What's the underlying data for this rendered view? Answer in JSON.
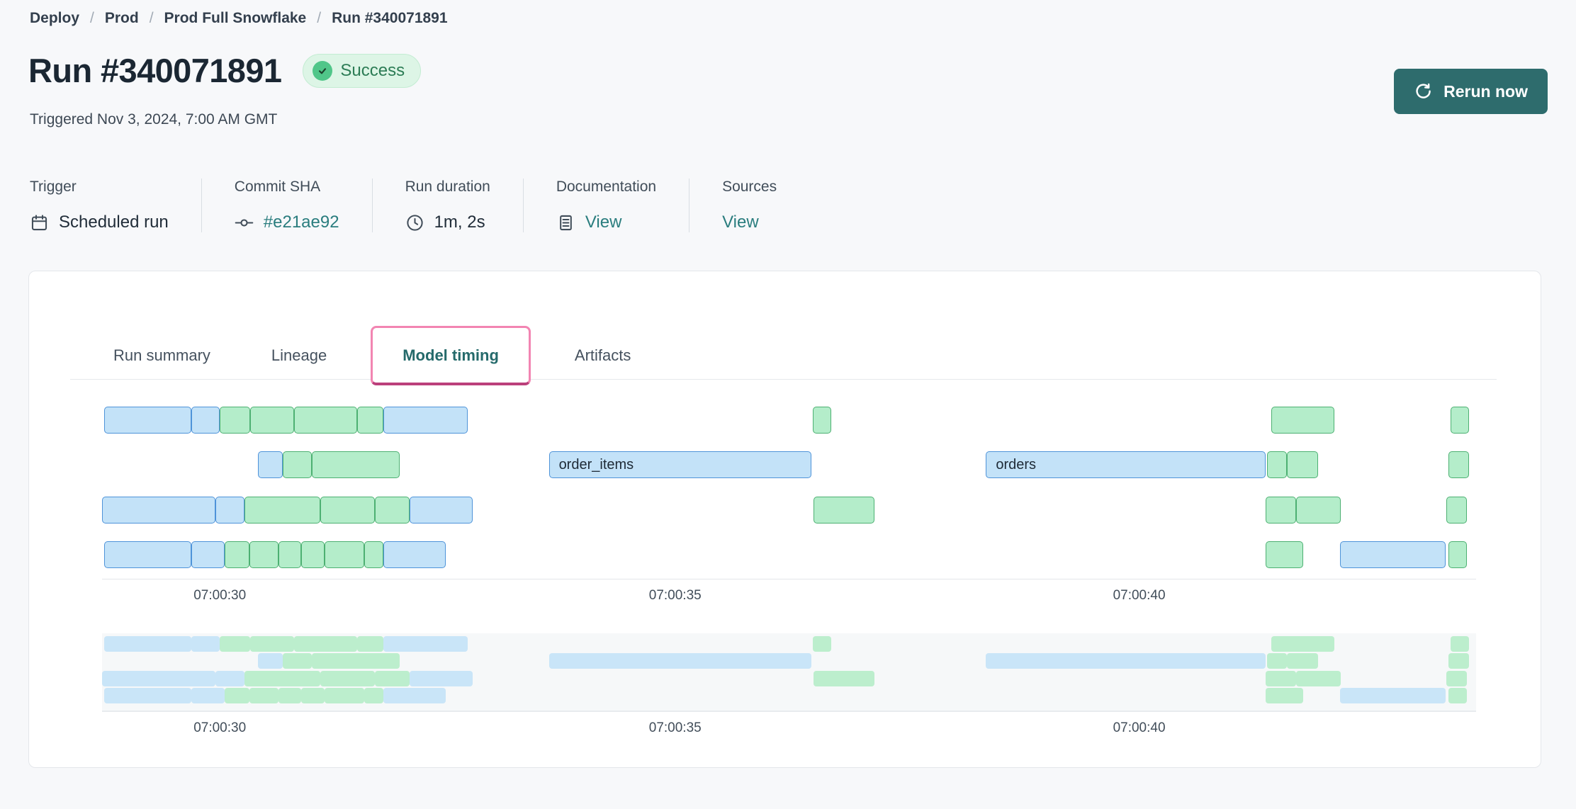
{
  "breadcrumb": {
    "separator": "/",
    "items": [
      "Deploy",
      "Prod",
      "Prod Full Snowflake",
      "Run #340071891"
    ]
  },
  "header": {
    "title": "Run #340071891",
    "status": "Success",
    "triggered": "Triggered Nov 3, 2024, 7:00 AM GMT",
    "rerun_label": "Rerun now"
  },
  "meta": {
    "columns": [
      {
        "label": "Trigger",
        "value": "Scheduled run",
        "icon": "calendar-icon"
      },
      {
        "label": "Commit SHA",
        "value": "#e21ae92",
        "icon": "commit-icon"
      },
      {
        "label": "Run duration",
        "value": "1m, 2s",
        "icon": "clock-icon"
      },
      {
        "label": "Documentation",
        "value": "View",
        "icon": "document-icon"
      },
      {
        "label": "Sources",
        "value": "View",
        "icon": null
      }
    ]
  },
  "tabs": [
    {
      "label": "Run summary",
      "active": false
    },
    {
      "label": "Lineage",
      "active": false
    },
    {
      "label": "Model timing",
      "active": true
    },
    {
      "label": "Artifacts",
      "active": false
    }
  ],
  "colors": {
    "page_bg": "#f7f8fa",
    "accent_teal_link": "#2a7d7e",
    "button_teal": "#2e6c6d",
    "success_badge_bg": "#ddf5e6",
    "success_badge_text": "#2c7c55",
    "success_circle": "#50c689",
    "active_tab_text": "#256a6b",
    "active_tab_ring": "#f285b2",
    "bar_blue_fill": "#c3e2f8",
    "bar_blue_border": "#4e93d9",
    "bar_green_fill": "#b4edca",
    "bar_green_border": "#4db072"
  },
  "chart_data": {
    "type": "gantt",
    "title": "Model timing",
    "x_axis": {
      "ticks": [
        {
          "label": "07:00:30",
          "pos_pct": 8.57
        },
        {
          "label": "07:00:35",
          "pos_pct": 41.71
        },
        {
          "label": "07:00:40",
          "pos_pct": 75.48
        }
      ]
    },
    "rows": [
      {
        "segments": [
          {
            "start_pct": 0.15,
            "width_pct": 6.35,
            "color": "blue"
          },
          {
            "start_pct": 6.5,
            "width_pct": 2.07,
            "color": "blue"
          },
          {
            "start_pct": 8.57,
            "width_pct": 2.22,
            "color": "green"
          },
          {
            "start_pct": 10.79,
            "width_pct": 3.2,
            "color": "green"
          },
          {
            "start_pct": 13.99,
            "width_pct": 4.59,
            "color": "green"
          },
          {
            "start_pct": 18.58,
            "width_pct": 1.91,
            "color": "green"
          },
          {
            "start_pct": 20.49,
            "width_pct": 6.14,
            "color": "blue"
          },
          {
            "start_pct": 51.73,
            "width_pct": 1.34,
            "color": "green"
          },
          {
            "start_pct": 85.08,
            "width_pct": 4.59,
            "color": "green"
          },
          {
            "start_pct": 98.14,
            "width_pct": 1.34,
            "color": "green"
          }
        ]
      },
      {
        "segments": [
          {
            "start_pct": 11.36,
            "width_pct": 1.81,
            "color": "blue"
          },
          {
            "start_pct": 13.17,
            "width_pct": 2.12,
            "color": "green"
          },
          {
            "start_pct": 15.29,
            "width_pct": 6.35,
            "color": "green"
          },
          {
            "start_pct": 32.52,
            "width_pct": 19.1,
            "color": "blue",
            "label": "order_items"
          },
          {
            "start_pct": 64.33,
            "width_pct": 20.34,
            "color": "blue",
            "label": "orders"
          },
          {
            "start_pct": 84.77,
            "width_pct": 1.45,
            "color": "green"
          },
          {
            "start_pct": 86.22,
            "width_pct": 2.27,
            "color": "green"
          },
          {
            "start_pct": 97.99,
            "width_pct": 1.5,
            "color": "green"
          }
        ]
      },
      {
        "segments": [
          {
            "start_pct": 0.0,
            "width_pct": 8.26,
            "color": "blue"
          },
          {
            "start_pct": 8.26,
            "width_pct": 2.12,
            "color": "blue"
          },
          {
            "start_pct": 10.38,
            "width_pct": 5.52,
            "color": "green"
          },
          {
            "start_pct": 15.9,
            "width_pct": 3.98,
            "color": "green"
          },
          {
            "start_pct": 19.88,
            "width_pct": 2.48,
            "color": "green"
          },
          {
            "start_pct": 22.36,
            "width_pct": 4.59,
            "color": "blue"
          },
          {
            "start_pct": 51.78,
            "width_pct": 4.44,
            "color": "green"
          },
          {
            "start_pct": 84.67,
            "width_pct": 2.22,
            "color": "green"
          },
          {
            "start_pct": 86.89,
            "width_pct": 3.25,
            "color": "green"
          },
          {
            "start_pct": 97.83,
            "width_pct": 1.5,
            "color": "green"
          }
        ]
      },
      {
        "segments": [
          {
            "start_pct": 0.15,
            "width_pct": 6.35,
            "color": "blue"
          },
          {
            "start_pct": 6.5,
            "width_pct": 2.43,
            "color": "blue"
          },
          {
            "start_pct": 8.93,
            "width_pct": 1.81,
            "color": "green"
          },
          {
            "start_pct": 10.74,
            "width_pct": 2.12,
            "color": "green"
          },
          {
            "start_pct": 12.86,
            "width_pct": 1.65,
            "color": "green"
          },
          {
            "start_pct": 14.51,
            "width_pct": 1.7,
            "color": "green"
          },
          {
            "start_pct": 16.21,
            "width_pct": 2.89,
            "color": "green"
          },
          {
            "start_pct": 19.1,
            "width_pct": 1.4,
            "color": "green"
          },
          {
            "start_pct": 20.5,
            "width_pct": 4.49,
            "color": "blue"
          },
          {
            "start_pct": 84.67,
            "width_pct": 2.74,
            "color": "green"
          },
          {
            "start_pct": 90.09,
            "width_pct": 7.69,
            "color": "blue"
          },
          {
            "start_pct": 97.99,
            "width_pct": 1.34,
            "color": "green"
          }
        ]
      }
    ]
  }
}
